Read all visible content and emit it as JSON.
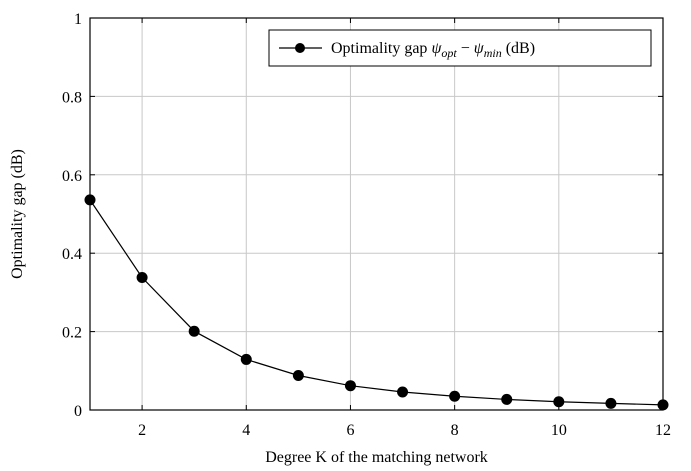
{
  "chart_data": {
    "type": "line",
    "title": "",
    "xlabel": "Degree K of the matching network",
    "ylabel": "Optimality gap (dB)",
    "xlim": [
      1,
      12
    ],
    "ylim": [
      0,
      1
    ],
    "grid": true,
    "legend_position": "top-right",
    "x_ticks": [
      "2",
      "4",
      "6",
      "8",
      "10",
      "12"
    ],
    "y_ticks": [
      "0",
      "0.2",
      "0.4",
      "0.6",
      "0.8",
      "1"
    ],
    "series": [
      {
        "name": "Optimality gap ψopt − ψmin (dB)",
        "legend": {
          "prefix": "Optimality gap ",
          "psi1": "ψ",
          "sub1": "opt",
          "minus": " − ",
          "psi2": "ψ",
          "sub2": "min",
          "suffix": " (dB)"
        },
        "color": "#000000",
        "marker": "circle",
        "x": [
          1,
          2,
          3,
          4,
          5,
          6,
          7,
          8,
          9,
          10,
          11,
          12
        ],
        "y": [
          0.536,
          0.338,
          0.201,
          0.129,
          0.088,
          0.062,
          0.046,
          0.035,
          0.027,
          0.021,
          0.017,
          0.013
        ]
      }
    ]
  }
}
